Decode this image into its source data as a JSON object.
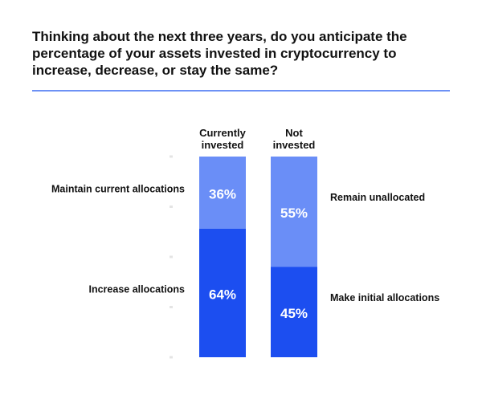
{
  "chart_data": {
    "type": "bar",
    "stacked": true,
    "title": "Thinking about the next three years, do you anticipate the percentage of your assets invested in cryptocurrency to increase, decrease, or stay the same?",
    "categories": [
      "Currently invested",
      "Not invested"
    ],
    "series": [
      {
        "name": "Increase allocations",
        "color": "#1c4ef0",
        "values": [
          64,
          null
        ],
        "value_labels": [
          "64%",
          null
        ]
      },
      {
        "name": "Maintain current allocations",
        "color": "#6a8ef7",
        "values": [
          36,
          null
        ],
        "value_labels": [
          "36%",
          null
        ]
      },
      {
        "name": "Make initial allocations",
        "color": "#1c4ef0",
        "values": [
          null,
          45
        ],
        "value_labels": [
          null,
          "45%"
        ]
      },
      {
        "name": "Remain unallocated",
        "color": "#6a8ef7",
        "values": [
          null,
          55
        ],
        "value_labels": [
          null,
          "55%"
        ]
      }
    ],
    "ylim": [
      0,
      100
    ],
    "yticks": [
      0,
      25,
      50,
      75,
      100
    ]
  }
}
